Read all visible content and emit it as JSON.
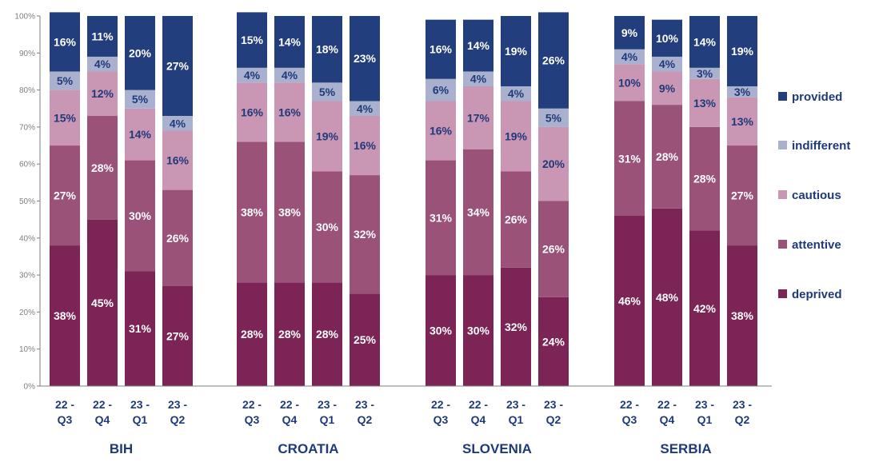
{
  "chart_data": {
    "type": "bar",
    "stacked": true,
    "title": "",
    "xlabel": "",
    "ylabel": "",
    "ylim": [
      0,
      100
    ],
    "y_ticks": [
      "0%",
      "10%",
      "20%",
      "30%",
      "40%",
      "50%",
      "60%",
      "70%",
      "80%",
      "90%",
      "100%"
    ],
    "legend_position": "right",
    "groups": [
      {
        "name": "BIH",
        "bars": [
          {
            "period": [
              "22 -",
              "Q3"
            ],
            "values": [
              38,
              27,
              15,
              5,
              16
            ],
            "labels": [
              "38%",
              "27%",
              "15%",
              "5%",
              "16%"
            ]
          },
          {
            "period": [
              "22 -",
              "Q4"
            ],
            "values": [
              45,
              28,
              12,
              4,
              11
            ],
            "labels": [
              "45%",
              "28%",
              "12%",
              "4%",
              "11%"
            ]
          },
          {
            "period": [
              "23 -",
              "Q1"
            ],
            "values": [
              31,
              30,
              14,
              5,
              20
            ],
            "labels": [
              "31%",
              "30%",
              "14%",
              "5%",
              "20%"
            ]
          },
          {
            "period": [
              "23 -",
              "Q2"
            ],
            "values": [
              27,
              26,
              16,
              4,
              27
            ],
            "labels": [
              "27%",
              "26%",
              "16%",
              "4%",
              "27%"
            ]
          }
        ]
      },
      {
        "name": "CROATIA",
        "bars": [
          {
            "period": [
              "22 -",
              "Q3"
            ],
            "values": [
              28,
              38,
              16,
              4,
              15
            ],
            "labels": [
              "28%",
              "38%",
              "16%",
              "4%",
              "15%"
            ]
          },
          {
            "period": [
              "22 -",
              "Q4"
            ],
            "values": [
              28,
              38,
              16,
              4,
              14
            ],
            "labels": [
              "28%",
              "38%",
              "16%",
              "4%",
              "14%"
            ]
          },
          {
            "period": [
              "23 -",
              "Q1"
            ],
            "values": [
              28,
              30,
              19,
              5,
              18
            ],
            "labels": [
              "28%",
              "30%",
              "19%",
              "5%",
              "18%"
            ]
          },
          {
            "period": [
              "23 -",
              "Q2"
            ],
            "values": [
              25,
              32,
              16,
              4,
              23
            ],
            "labels": [
              "25%",
              "32%",
              "16%",
              "4%",
              "23%"
            ]
          }
        ]
      },
      {
        "name": "SLOVENIA",
        "bars": [
          {
            "period": [
              "22 -",
              "Q3"
            ],
            "values": [
              30,
              31,
              16,
              6,
              16
            ],
            "labels": [
              "30%",
              "31%",
              "16%",
              "6%",
              "16%"
            ]
          },
          {
            "period": [
              "22 -",
              "Q4"
            ],
            "values": [
              30,
              34,
              17,
              4,
              14
            ],
            "labels": [
              "30%",
              "34%",
              "17%",
              "4%",
              "14%"
            ]
          },
          {
            "period": [
              "23 -",
              "Q1"
            ],
            "values": [
              32,
              26,
              19,
              4,
              19
            ],
            "labels": [
              "32%",
              "26%",
              "19%",
              "4%",
              "19%"
            ]
          },
          {
            "period": [
              "23 -",
              "Q2"
            ],
            "values": [
              24,
              26,
              20,
              5,
              26
            ],
            "labels": [
              "24%",
              "26%",
              "20%",
              "5%",
              "26%"
            ]
          }
        ]
      },
      {
        "name": "SERBIA",
        "bars": [
          {
            "period": [
              "22 -",
              "Q3"
            ],
            "values": [
              46,
              31,
              10,
              4,
              9
            ],
            "labels": [
              "46%",
              "31%",
              "10%",
              "4%",
              "9%"
            ]
          },
          {
            "period": [
              "22 -",
              "Q4"
            ],
            "values": [
              48,
              28,
              9,
              4,
              10
            ],
            "labels": [
              "48%",
              "28%",
              "9%",
              "4%",
              "10%"
            ]
          },
          {
            "period": [
              "23 -",
              "Q1"
            ],
            "values": [
              42,
              28,
              13,
              3,
              14
            ],
            "labels": [
              "42%",
              "28%",
              "13%",
              "3%",
              "14%"
            ]
          },
          {
            "period": [
              "23 -",
              "Q2"
            ],
            "values": [
              38,
              27,
              13,
              3,
              19
            ],
            "labels": [
              "38%",
              "27%",
              "13%",
              "3%",
              "19%"
            ]
          }
        ]
      }
    ],
    "series": [
      {
        "name": "deprived",
        "color": "#7b2455",
        "label_color": "#ffffff"
      },
      {
        "name": "attentive",
        "color": "#9b5278",
        "label_color": "#ffffff"
      },
      {
        "name": "cautious",
        "color": "#c996b4",
        "label_color": "#1f3a7a"
      },
      {
        "name": "indifferent",
        "color": "#a9b1cf",
        "label_color": "#1f3a7a"
      },
      {
        "name": "provided",
        "color": "#223e7c",
        "label_color": "#ffffff"
      }
    ],
    "legend_order": [
      "provided",
      "indifferent",
      "cautious",
      "attentive",
      "deprived"
    ],
    "axis_color": "#7f7f7f"
  }
}
